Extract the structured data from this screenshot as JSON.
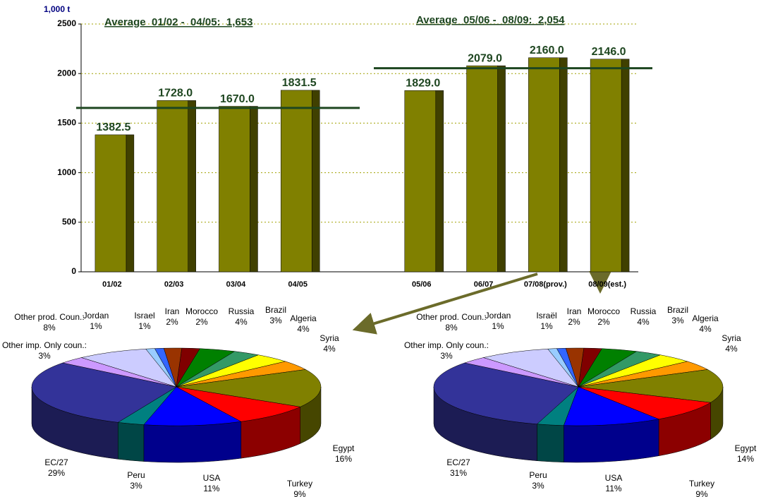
{
  "chart_data": [
    {
      "type": "bar",
      "y_label": "1,000 t",
      "categories": [
        "01/02",
        "02/03",
        "03/04",
        "04/05",
        null,
        "05/06",
        "06/07",
        "07/08(prov.)",
        "08/09(est.)"
      ],
      "values": [
        1382.5,
        1728.0,
        1670.0,
        1831.5,
        null,
        1829.0,
        2079.0,
        2160.0,
        2146.0
      ],
      "value_labels": [
        "1382.5",
        "1728.0",
        "1670.0",
        "1831.5",
        null,
        "1829.0",
        "2079.0",
        "2160.0",
        "2146.0"
      ],
      "color": "#808000",
      "side_color": "#404000",
      "ylim": [
        0,
        2500
      ],
      "yticks": [
        0,
        500,
        1000,
        1500,
        2000,
        2500
      ],
      "grid": true,
      "average_lines": [
        {
          "label": "Average  01/02 -  04/05:  1,653",
          "value": 1653,
          "color": "#1e4620"
        },
        {
          "label": "Average  05/06 -  08/09:  2,054",
          "value": 2054,
          "color": "#1e4620"
        }
      ]
    },
    {
      "type": "pie",
      "categories": [
        "Iran",
        "Morocco",
        "Russia",
        "Brazil",
        "Algeria",
        "Syria",
        "Egypt",
        "Turkey",
        "USA",
        "Peru",
        "EC/27",
        "Other imp. Only coun.:",
        "Other prod. Coun.:",
        "Jordan",
        "Israel"
      ],
      "values": [
        2,
        2,
        4,
        3,
        4,
        4,
        16,
        9,
        11,
        3,
        29,
        3,
        8,
        1,
        1
      ],
      "value_labels": [
        "2%",
        "2%",
        "4%",
        "3%",
        "4%",
        "4%",
        "16%",
        "9%",
        "11%",
        "3%",
        "29%",
        "3%",
        "8%",
        "1%",
        "1%"
      ],
      "colors": [
        "#993300",
        "#800000",
        "#008000",
        "#339966",
        "#ffff00",
        "#ff9900",
        "#808000",
        "#ff0000",
        "#0000ff",
        "#008080",
        "#333399",
        "#cc99ff",
        "#ccccff",
        "#99ccff",
        "#3366ff"
      ]
    },
    {
      "type": "pie",
      "categories": [
        "Iran",
        "Morocco",
        "Russia",
        "Brazil",
        "Algeria",
        "Syria",
        "Egypt",
        "Turkey",
        "USA",
        "Peru",
        "EC/27",
        "Other imp. Only coun.:",
        "Other prod. Coun.:",
        "Jordan",
        "Israël"
      ],
      "values": [
        2,
        2,
        4,
        3,
        4,
        4,
        14,
        9,
        11,
        3,
        31,
        3,
        8,
        1,
        1
      ],
      "value_labels": [
        "2%",
        "2%",
        "4%",
        "3%",
        "4%",
        "4%",
        "14%",
        "9%",
        "11%",
        "3%",
        "31%",
        "3%",
        "8%",
        "1%",
        "1%"
      ],
      "colors": [
        "#993300",
        "#800000",
        "#008000",
        "#339966",
        "#ffff00",
        "#ff9900",
        "#808000",
        "#ff0000",
        "#0000ff",
        "#008080",
        "#333399",
        "#cc99ff",
        "#ccccff",
        "#99ccff",
        "#3366ff"
      ]
    }
  ]
}
